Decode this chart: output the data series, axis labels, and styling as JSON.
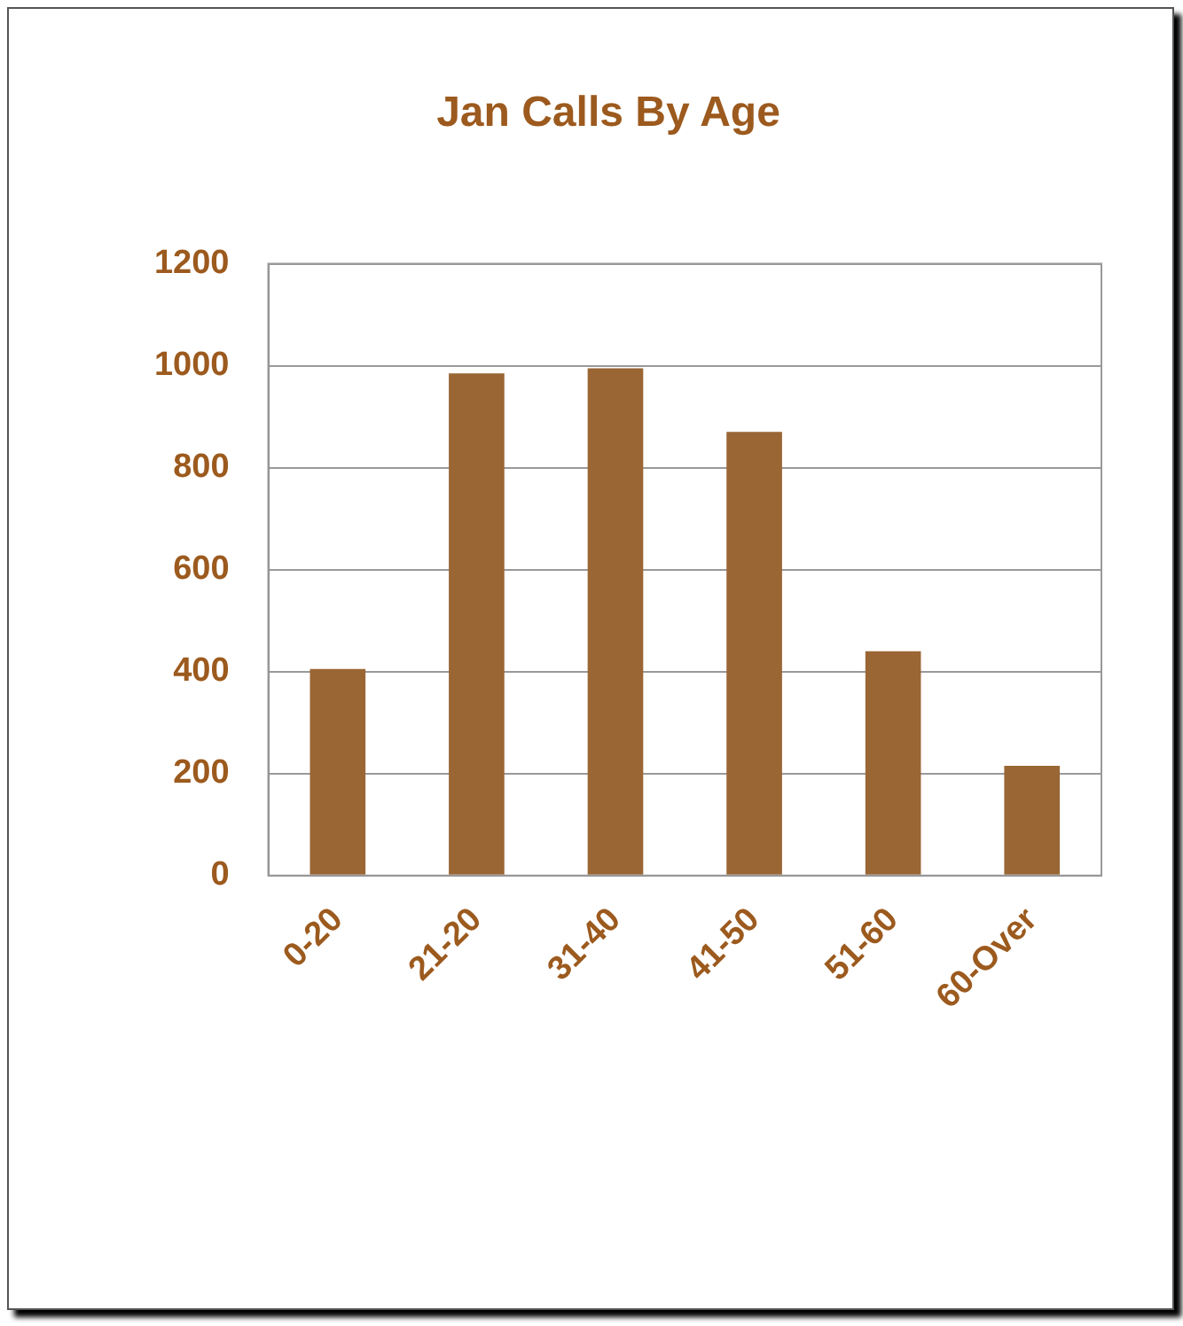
{
  "chart_data": {
    "type": "bar",
    "title": "Jan Calls By Age",
    "categories": [
      "0-20",
      "21-20",
      "31-40",
      "41-50",
      "51-60",
      "60-Over"
    ],
    "values": [
      405,
      985,
      995,
      870,
      440,
      215
    ],
    "color": "#9a6634",
    "ylim": [
      0,
      1200
    ],
    "yticks": [
      0,
      200,
      400,
      600,
      800,
      1000,
      1200
    ],
    "grid": "y",
    "legend": false
  }
}
